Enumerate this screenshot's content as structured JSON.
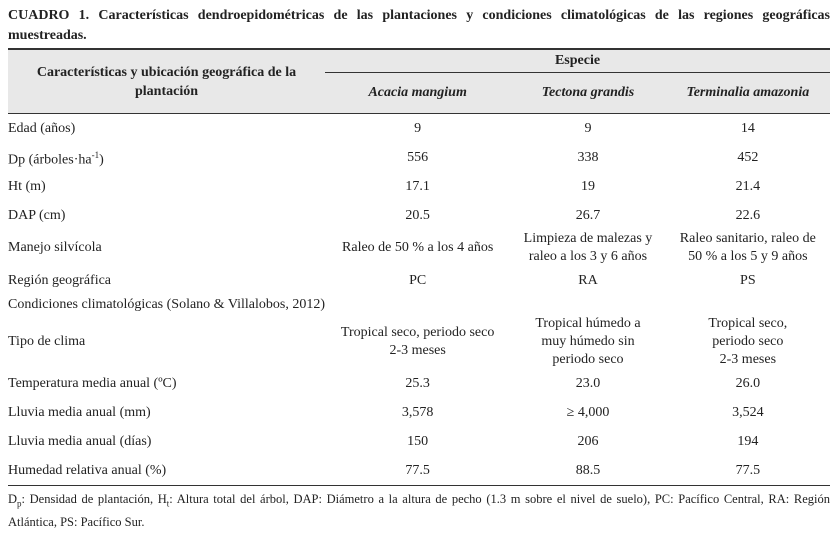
{
  "caption": {
    "label": "CUADRO 1.",
    "text": "Características dendroepidométricas de las plantaciones y condiciones climatológicas de las regiones geográficas muestreadas."
  },
  "table": {
    "header": {
      "row_label": "Características y ubicación geográfica de la plantación",
      "group": "Especie",
      "species": [
        "Acacia mangium",
        "Tectona grandis",
        "Terminalia amazonia"
      ]
    },
    "rows": [
      {
        "label": "Edad (años)",
        "values": [
          [
            "9"
          ],
          [
            "9"
          ],
          [
            "14"
          ]
        ]
      },
      {
        "label": "Dp (árboles·ha",
        "label_sup": "-1",
        "label_end": ")",
        "values": [
          [
            "556"
          ],
          [
            "338"
          ],
          [
            "452"
          ]
        ]
      },
      {
        "label": "Ht (m)",
        "values": [
          [
            "17.1"
          ],
          [
            "19"
          ],
          [
            "21.4"
          ]
        ]
      },
      {
        "label": "DAP (cm)",
        "values": [
          [
            "20.5"
          ],
          [
            "26.7"
          ],
          [
            "22.6"
          ]
        ]
      },
      {
        "label": "Manejo silvícola",
        "values": [
          [
            "Raleo de 50 % a los 4 años"
          ],
          [
            "Limpieza de malezas y",
            "raleo a los 3 y 6 años"
          ],
          [
            "Raleo sanitario, raleo de",
            "50 % a los 5 y 9 años"
          ]
        ]
      },
      {
        "label": "Región geográfica",
        "values": [
          [
            "PC"
          ],
          [
            "RA"
          ],
          [
            "PS"
          ]
        ]
      },
      {
        "label": "Condiciones climatológicas (Solano & Villalobos, 2012)"
      },
      {
        "label": "Tipo de clima",
        "values": [
          [
            "Tropical seco, periodo seco",
            "2-3 meses"
          ],
          [
            "Tropical húmedo a",
            "muy húmedo sin",
            "periodo seco"
          ],
          [
            "Tropical seco,",
            "periodo seco",
            "2-3 meses"
          ]
        ]
      },
      {
        "label": "Temperatura media anual (ºC)",
        "values": [
          [
            "25.3"
          ],
          [
            "23.0"
          ],
          [
            "26.0"
          ]
        ]
      },
      {
        "label": "Lluvia media anual (mm)",
        "values": [
          [
            "3,578"
          ],
          [
            "≥ 4,000"
          ],
          [
            "3,524"
          ]
        ]
      },
      {
        "label": "Lluvia media anual (días)",
        "values": [
          [
            "150"
          ],
          [
            "206"
          ],
          [
            "194"
          ]
        ]
      },
      {
        "label": "Humedad relativa anual (%)",
        "values": [
          [
            "77.5"
          ],
          [
            "88.5"
          ],
          [
            "77.5"
          ]
        ]
      }
    ]
  },
  "footnote": [
    "D",
    "p",
    ": Densidad de plantación, H",
    "t",
    ": Altura total del árbol, DAP: Diámetro a la altura de pecho (1.3 m sobre el nivel de suelo), PC: Pacífico Central, RA: Región Atlántica, PS: Pacífico Sur."
  ]
}
